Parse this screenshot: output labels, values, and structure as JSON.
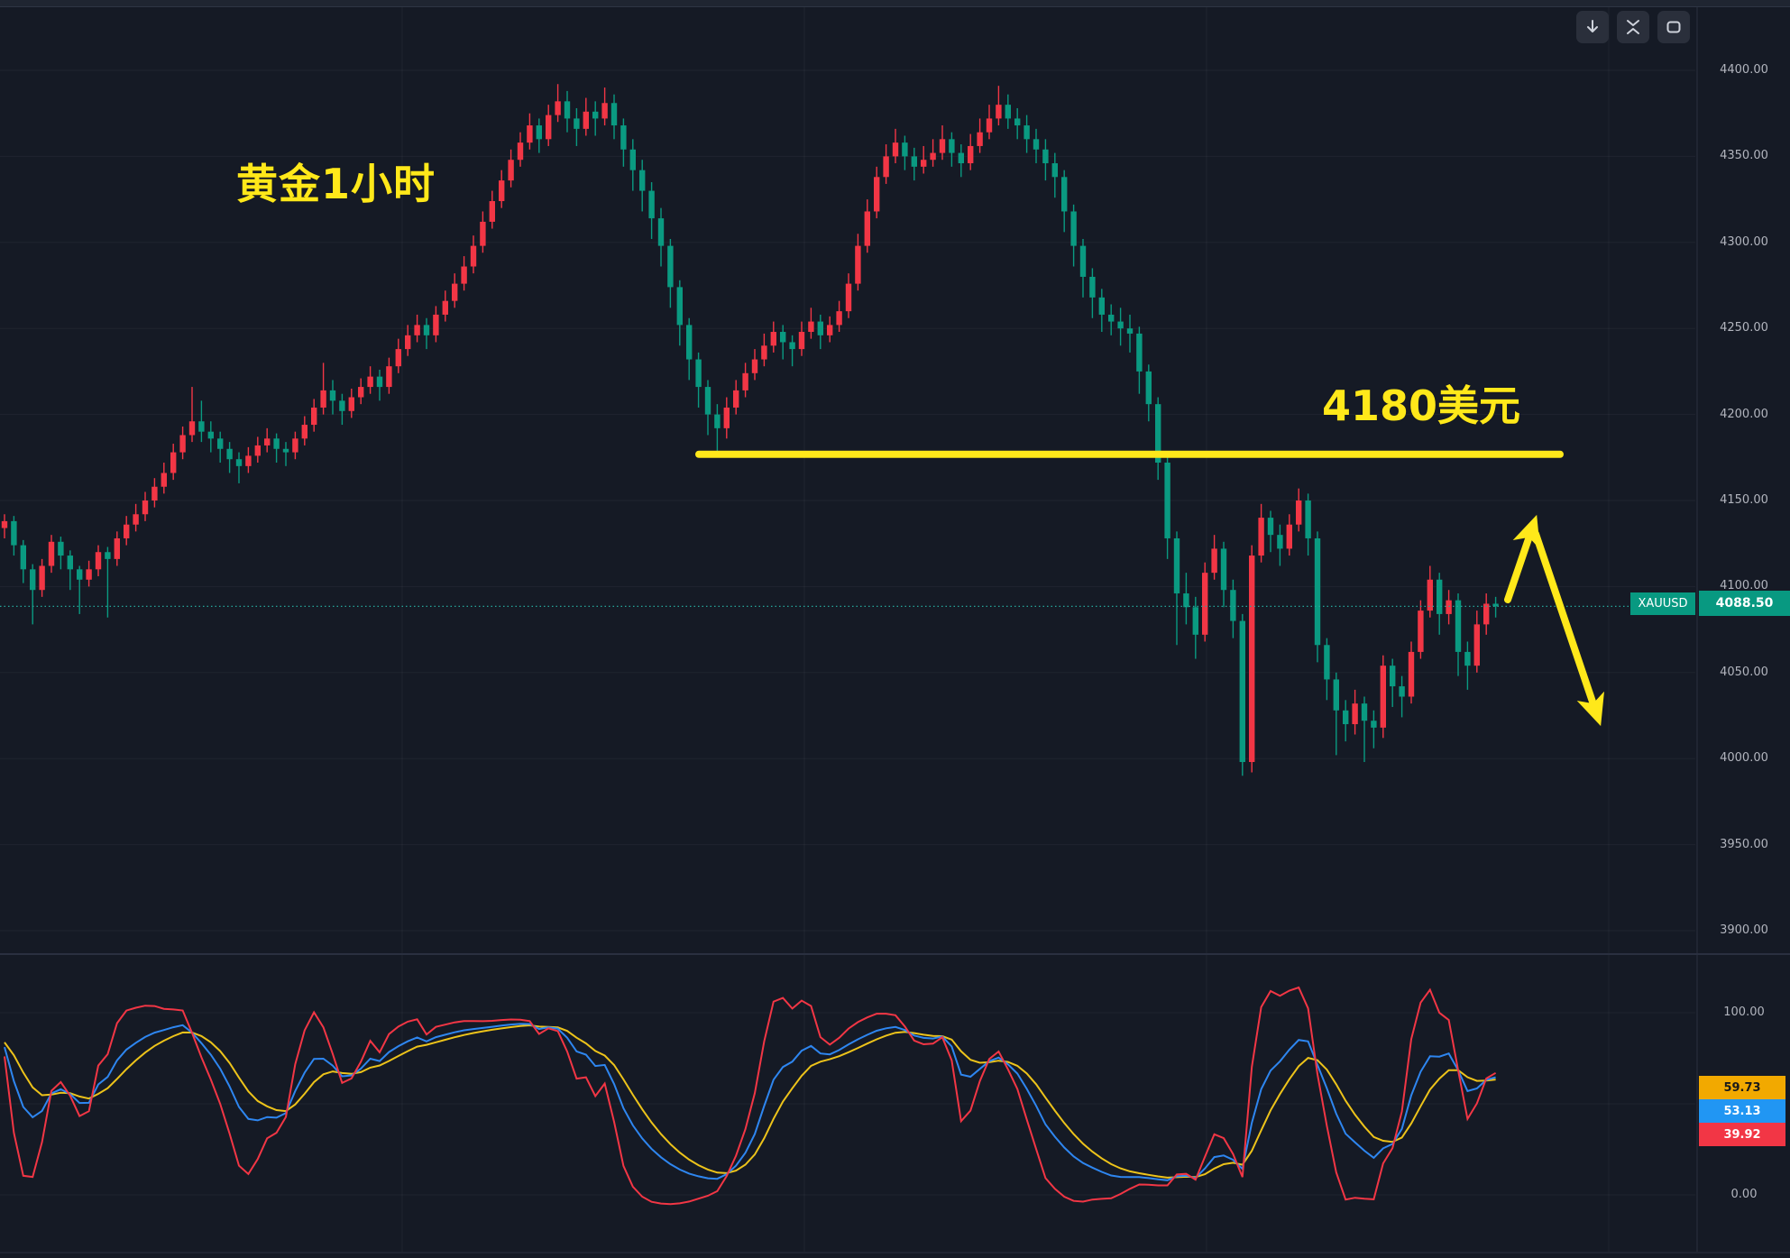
{
  "symbol": {
    "name": "XAUUSD",
    "last_price": "4088.50"
  },
  "annotations": {
    "timeframe_label": "黄金1小时",
    "level_label": "4180美元",
    "accent_color": "#ffe81a",
    "arrows": [
      "up-bounce-arrow",
      "down-projection-arrow"
    ]
  },
  "toolbar": {
    "buttons": [
      "download",
      "collapse",
      "fullscreen"
    ]
  },
  "price_axis": {
    "tick_labels": [
      "4400.00",
      "4350.00",
      "4300.00",
      "4250.00",
      "4200.00",
      "4150.00",
      "4100.00",
      "4050.00",
      "4000.00",
      "3950.00",
      "3900.00"
    ],
    "tick_values": [
      4400,
      4350,
      4300,
      4250,
      4200,
      4150,
      4100,
      4050,
      4000,
      3950,
      3900
    ]
  },
  "indicator_axis": {
    "tick_labels": [
      "100.00",
      "0.00"
    ],
    "tick_values": [
      100,
      0
    ],
    "badges": [
      {
        "label": "59.73",
        "bg": "#f2a900",
        "fg": "#1a1a1a",
        "series": "D"
      },
      {
        "label": "53.13",
        "bg": "#2196f3",
        "fg": "#ffffff",
        "series": "K"
      },
      {
        "label": "39.92",
        "bg": "#f23645",
        "fg": "#ffffff",
        "series": "J"
      }
    ]
  },
  "colors": {
    "background": "#151a25",
    "grid": "rgba(197,203,222,0.06)",
    "separator": "#2a3040",
    "up_candle": "#f23645",
    "down_candle": "#0a9a81",
    "last_price_line": "#26a69a",
    "badge_teal": "#089981",
    "axis_text": "#b2b5be",
    "kdj_j": "#f23645",
    "kdj_k": "#2e86f0",
    "kdj_d": "#edc31a",
    "annotation_yellow": "#ffe81a"
  },
  "chart_data": {
    "type": "candlestick",
    "title": "XAUUSD 1H with KDJ oscillator",
    "symbol": "XAUUSD",
    "timeframe": "1小时",
    "price_axis_range": [
      3900,
      4400
    ],
    "support_level": 4180,
    "last_price": 4088.5,
    "grid": true,
    "legend_position": "none",
    "candles_format": [
      "open",
      "high",
      "low",
      "close"
    ],
    "candles": [
      [
        4134,
        4142,
        4128,
        4138
      ],
      [
        4138,
        4141,
        4118,
        4124
      ],
      [
        4124,
        4127,
        4102,
        4110
      ],
      [
        4110,
        4113,
        4078,
        4098
      ],
      [
        4098,
        4116,
        4094,
        4112
      ],
      [
        4112,
        4130,
        4108,
        4126
      ],
      [
        4126,
        4129,
        4110,
        4118
      ],
      [
        4118,
        4121,
        4098,
        4110
      ],
      [
        4110,
        4112,
        4084,
        4104
      ],
      [
        4104,
        4115,
        4100,
        4110
      ],
      [
        4110,
        4124,
        4106,
        4120
      ],
      [
        4120,
        4123,
        4082,
        4116
      ],
      [
        4116,
        4132,
        4112,
        4128
      ],
      [
        4128,
        4141,
        4124,
        4136
      ],
      [
        4136,
        4148,
        4132,
        4142
      ],
      [
        4142,
        4155,
        4138,
        4150
      ],
      [
        4150,
        4163,
        4146,
        4158
      ],
      [
        4158,
        4172,
        4154,
        4166
      ],
      [
        4166,
        4183,
        4162,
        4178
      ],
      [
        4178,
        4193,
        4174,
        4188
      ],
      [
        4188,
        4216,
        4184,
        4196
      ],
      [
        4196,
        4208,
        4184,
        4190
      ],
      [
        4190,
        4196,
        4178,
        4186
      ],
      [
        4186,
        4190,
        4172,
        4180
      ],
      [
        4180,
        4184,
        4166,
        4174
      ],
      [
        4174,
        4178,
        4160,
        4170
      ],
      [
        4170,
        4181,
        4166,
        4176
      ],
      [
        4176,
        4187,
        4172,
        4182
      ],
      [
        4182,
        4192,
        4178,
        4186
      ],
      [
        4186,
        4189,
        4172,
        4180
      ],
      [
        4180,
        4184,
        4170,
        4178
      ],
      [
        4178,
        4190,
        4174,
        4186
      ],
      [
        4186,
        4199,
        4182,
        4194
      ],
      [
        4194,
        4209,
        4190,
        4204
      ],
      [
        4204,
        4230,
        4200,
        4214
      ],
      [
        4214,
        4220,
        4200,
        4208
      ],
      [
        4208,
        4212,
        4194,
        4202
      ],
      [
        4202,
        4215,
        4198,
        4210
      ],
      [
        4210,
        4221,
        4206,
        4216
      ],
      [
        4216,
        4228,
        4212,
        4222
      ],
      [
        4222,
        4226,
        4208,
        4216
      ],
      [
        4216,
        4233,
        4212,
        4228
      ],
      [
        4228,
        4244,
        4224,
        4238
      ],
      [
        4238,
        4252,
        4234,
        4246
      ],
      [
        4246,
        4258,
        4242,
        4252
      ],
      [
        4252,
        4256,
        4238,
        4246
      ],
      [
        4246,
        4263,
        4242,
        4258
      ],
      [
        4258,
        4272,
        4254,
        4266
      ],
      [
        4266,
        4282,
        4262,
        4276
      ],
      [
        4276,
        4292,
        4272,
        4286
      ],
      [
        4286,
        4304,
        4282,
        4298
      ],
      [
        4298,
        4318,
        4294,
        4312
      ],
      [
        4312,
        4330,
        4308,
        4324
      ],
      [
        4324,
        4342,
        4320,
        4336
      ],
      [
        4336,
        4354,
        4332,
        4348
      ],
      [
        4348,
        4364,
        4344,
        4358
      ],
      [
        4358,
        4375,
        4354,
        4368
      ],
      [
        4368,
        4372,
        4352,
        4360
      ],
      [
        4360,
        4380,
        4356,
        4374
      ],
      [
        4374,
        4392,
        4370,
        4382
      ],
      [
        4382,
        4388,
        4364,
        4372
      ],
      [
        4372,
        4378,
        4356,
        4366
      ],
      [
        4366,
        4384,
        4362,
        4376
      ],
      [
        4376,
        4382,
        4362,
        4372
      ],
      [
        4372,
        4390,
        4368,
        4381
      ],
      [
        4381,
        4386,
        4360,
        4368
      ],
      [
        4368,
        4372,
        4344,
        4354
      ],
      [
        4354,
        4360,
        4330,
        4342
      ],
      [
        4342,
        4348,
        4318,
        4330
      ],
      [
        4330,
        4335,
        4302,
        4314
      ],
      [
        4314,
        4320,
        4286,
        4298
      ],
      [
        4298,
        4302,
        4262,
        4274
      ],
      [
        4274,
        4278,
        4240,
        4252
      ],
      [
        4252,
        4256,
        4220,
        4232
      ],
      [
        4232,
        4236,
        4204,
        4216
      ],
      [
        4216,
        4220,
        4188,
        4200
      ],
      [
        4200,
        4206,
        4178,
        4192
      ],
      [
        4192,
        4210,
        4186,
        4204
      ],
      [
        4204,
        4220,
        4200,
        4214
      ],
      [
        4214,
        4230,
        4210,
        4224
      ],
      [
        4224,
        4238,
        4220,
        4232
      ],
      [
        4232,
        4247,
        4228,
        4240
      ],
      [
        4240,
        4254,
        4236,
        4248
      ],
      [
        4248,
        4252,
        4232,
        4242
      ],
      [
        4242,
        4246,
        4228,
        4238
      ],
      [
        4238,
        4254,
        4234,
        4248
      ],
      [
        4248,
        4262,
        4244,
        4254
      ],
      [
        4254,
        4258,
        4238,
        4246
      ],
      [
        4246,
        4257,
        4242,
        4252
      ],
      [
        4252,
        4266,
        4248,
        4260
      ],
      [
        4260,
        4282,
        4256,
        4276
      ],
      [
        4276,
        4305,
        4272,
        4298
      ],
      [
        4298,
        4325,
        4294,
        4318
      ],
      [
        4318,
        4344,
        4314,
        4338
      ],
      [
        4338,
        4357,
        4334,
        4350
      ],
      [
        4350,
        4366,
        4346,
        4358
      ],
      [
        4358,
        4362,
        4342,
        4350
      ],
      [
        4350,
        4355,
        4336,
        4344
      ],
      [
        4344,
        4356,
        4340,
        4348
      ],
      [
        4348,
        4360,
        4344,
        4352
      ],
      [
        4352,
        4368,
        4348,
        4360
      ],
      [
        4360,
        4364,
        4344,
        4352
      ],
      [
        4352,
        4357,
        4338,
        4346
      ],
      [
        4346,
        4363,
        4342,
        4356
      ],
      [
        4356,
        4372,
        4352,
        4364
      ],
      [
        4364,
        4380,
        4360,
        4372
      ],
      [
        4372,
        4391,
        4368,
        4380
      ],
      [
        4380,
        4386,
        4366,
        4372
      ],
      [
        4372,
        4378,
        4360,
        4368
      ],
      [
        4368,
        4374,
        4352,
        4360
      ],
      [
        4360,
        4366,
        4346,
        4354
      ],
      [
        4354,
        4360,
        4336,
        4346
      ],
      [
        4346,
        4352,
        4326,
        4338
      ],
      [
        4338,
        4342,
        4306,
        4318
      ],
      [
        4318,
        4322,
        4286,
        4298
      ],
      [
        4298,
        4302,
        4268,
        4280
      ],
      [
        4280,
        4285,
        4256,
        4268
      ],
      [
        4268,
        4273,
        4248,
        4258
      ],
      [
        4258,
        4264,
        4246,
        4254
      ],
      [
        4254,
        4262,
        4240,
        4250
      ],
      [
        4250,
        4258,
        4236,
        4247
      ],
      [
        4247,
        4251,
        4212,
        4225
      ],
      [
        4225,
        4229,
        4196,
        4206
      ],
      [
        4206,
        4210,
        4162,
        4172
      ],
      [
        4172,
        4176,
        4116,
        4128
      ],
      [
        4128,
        4132,
        4066,
        4096
      ],
      [
        4096,
        4108,
        4078,
        4088
      ],
      [
        4088,
        4094,
        4058,
        4072
      ],
      [
        4072,
        4114,
        4068,
        4108
      ],
      [
        4108,
        4130,
        4104,
        4122
      ],
      [
        4122,
        4126,
        4088,
        4098
      ],
      [
        4098,
        4104,
        4070,
        4080
      ],
      [
        4080,
        4084,
        3990,
        3998
      ],
      [
        3998,
        4124,
        3992,
        4118
      ],
      [
        4118,
        4148,
        4114,
        4140
      ],
      [
        4140,
        4144,
        4120,
        4130
      ],
      [
        4130,
        4136,
        4112,
        4122
      ],
      [
        4122,
        4142,
        4118,
        4136
      ],
      [
        4136,
        4157,
        4132,
        4150
      ],
      [
        4150,
        4154,
        4118,
        4128
      ],
      [
        4128,
        4132,
        4056,
        4066
      ],
      [
        4066,
        4070,
        4034,
        4046
      ],
      [
        4046,
        4050,
        4002,
        4028
      ],
      [
        4028,
        4034,
        4010,
        4020
      ],
      [
        4020,
        4040,
        4014,
        4032
      ],
      [
        4032,
        4036,
        3998,
        4022
      ],
      [
        4022,
        4028,
        4006,
        4018
      ],
      [
        4018,
        4060,
        4012,
        4054
      ],
      [
        4054,
        4058,
        4030,
        4042
      ],
      [
        4042,
        4048,
        4024,
        4036
      ],
      [
        4036,
        4068,
        4032,
        4062
      ],
      [
        4062,
        4092,
        4058,
        4086
      ],
      [
        4086,
        4112,
        4082,
        4104
      ],
      [
        4104,
        4108,
        4072,
        4084
      ],
      [
        4084,
        4098,
        4078,
        4092
      ],
      [
        4092,
        4096,
        4048,
        4062
      ],
      [
        4062,
        4068,
        4040,
        4054
      ],
      [
        4054,
        4086,
        4050,
        4078
      ],
      [
        4078,
        4096,
        4072,
        4090
      ],
      [
        4090,
        4094,
        4082,
        4088.5
      ]
    ],
    "indicator": {
      "type": "KDJ",
      "period": 9,
      "range": [
        0,
        100
      ],
      "last_values": {
        "k": 53.13,
        "d": 59.73,
        "j": 39.92
      }
    }
  }
}
